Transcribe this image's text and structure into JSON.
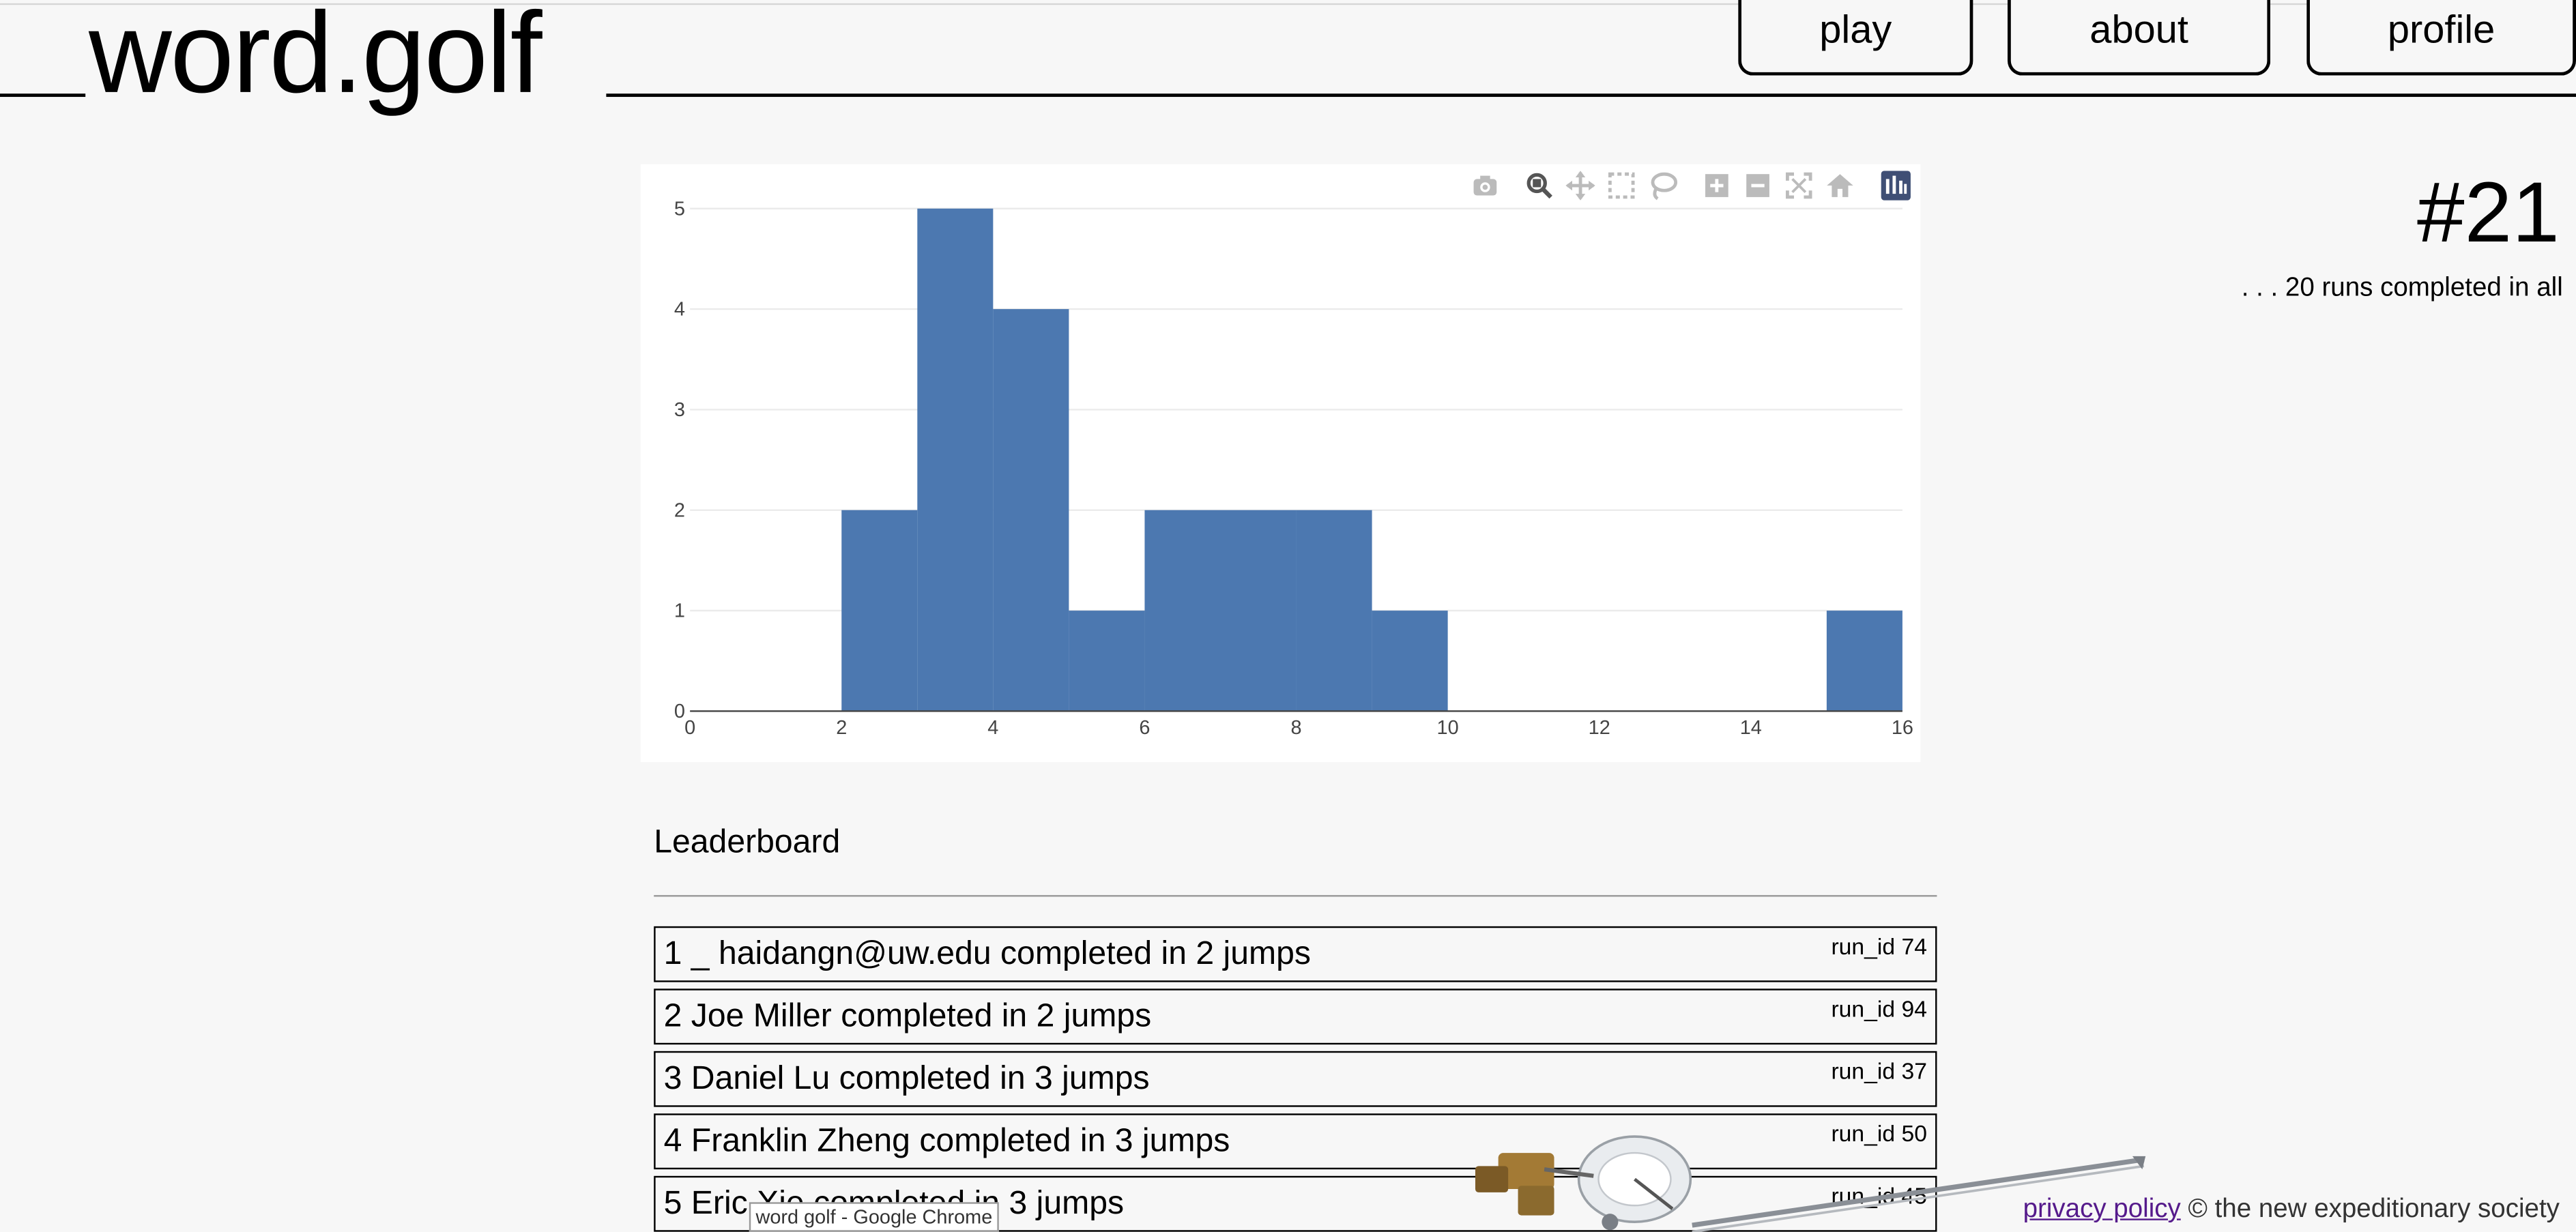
{
  "header": {
    "logo": "word.golf",
    "nav": [
      {
        "label": "play"
      },
      {
        "label": "about"
      },
      {
        "label": "profile"
      }
    ]
  },
  "puzzle": {
    "number": "#21",
    "runs_note": ". . . 20 runs completed in all"
  },
  "chart_data": {
    "type": "bar",
    "bin_width": 1,
    "bins": [
      {
        "start": 2,
        "count": 2
      },
      {
        "start": 3,
        "count": 5
      },
      {
        "start": 4,
        "count": 4
      },
      {
        "start": 5,
        "count": 1
      },
      {
        "start": 6,
        "count": 2
      },
      {
        "start": 7,
        "count": 2
      },
      {
        "start": 8,
        "count": 2
      },
      {
        "start": 9,
        "count": 1
      },
      {
        "start": 15,
        "count": 1
      }
    ],
    "xlim": [
      0,
      16
    ],
    "ylim": [
      0,
      5
    ],
    "x_ticks": [
      0,
      2,
      4,
      6,
      8,
      10,
      12,
      14,
      16
    ],
    "y_ticks": [
      0,
      1,
      2,
      3,
      4,
      5
    ],
    "grid": "horizontal",
    "bar_color": "#4c78b0"
  },
  "modebar": {
    "icons": [
      "camera-icon",
      "zoom-icon",
      "pan-icon",
      "box-select-icon",
      "lasso-icon",
      "zoom-in-icon",
      "zoom-out-icon",
      "autoscale-icon",
      "reset-axes-icon",
      "plotly-logo-icon"
    ]
  },
  "leaderboard": {
    "title": "Leaderboard",
    "rows": [
      {
        "text": "1 _ haidangn@uw.edu completed in 2 jumps",
        "run_id": "run_id 74"
      },
      {
        "text": "2 Joe Miller completed in 2 jumps",
        "run_id": "run_id 94"
      },
      {
        "text": "3 Daniel Lu completed in 3 jumps",
        "run_id": "run_id 37"
      },
      {
        "text": "4 Franklin Zheng completed in 3 jumps",
        "run_id": "run_id 50"
      },
      {
        "text": "5 Eric Xie completed in 3 jumps",
        "run_id": "run_id 45"
      }
    ]
  },
  "footer": {
    "privacy_link": "privacy policy",
    "copyright": "© the new expeditionary society"
  },
  "tooltip": "word golf - Google Chrome"
}
